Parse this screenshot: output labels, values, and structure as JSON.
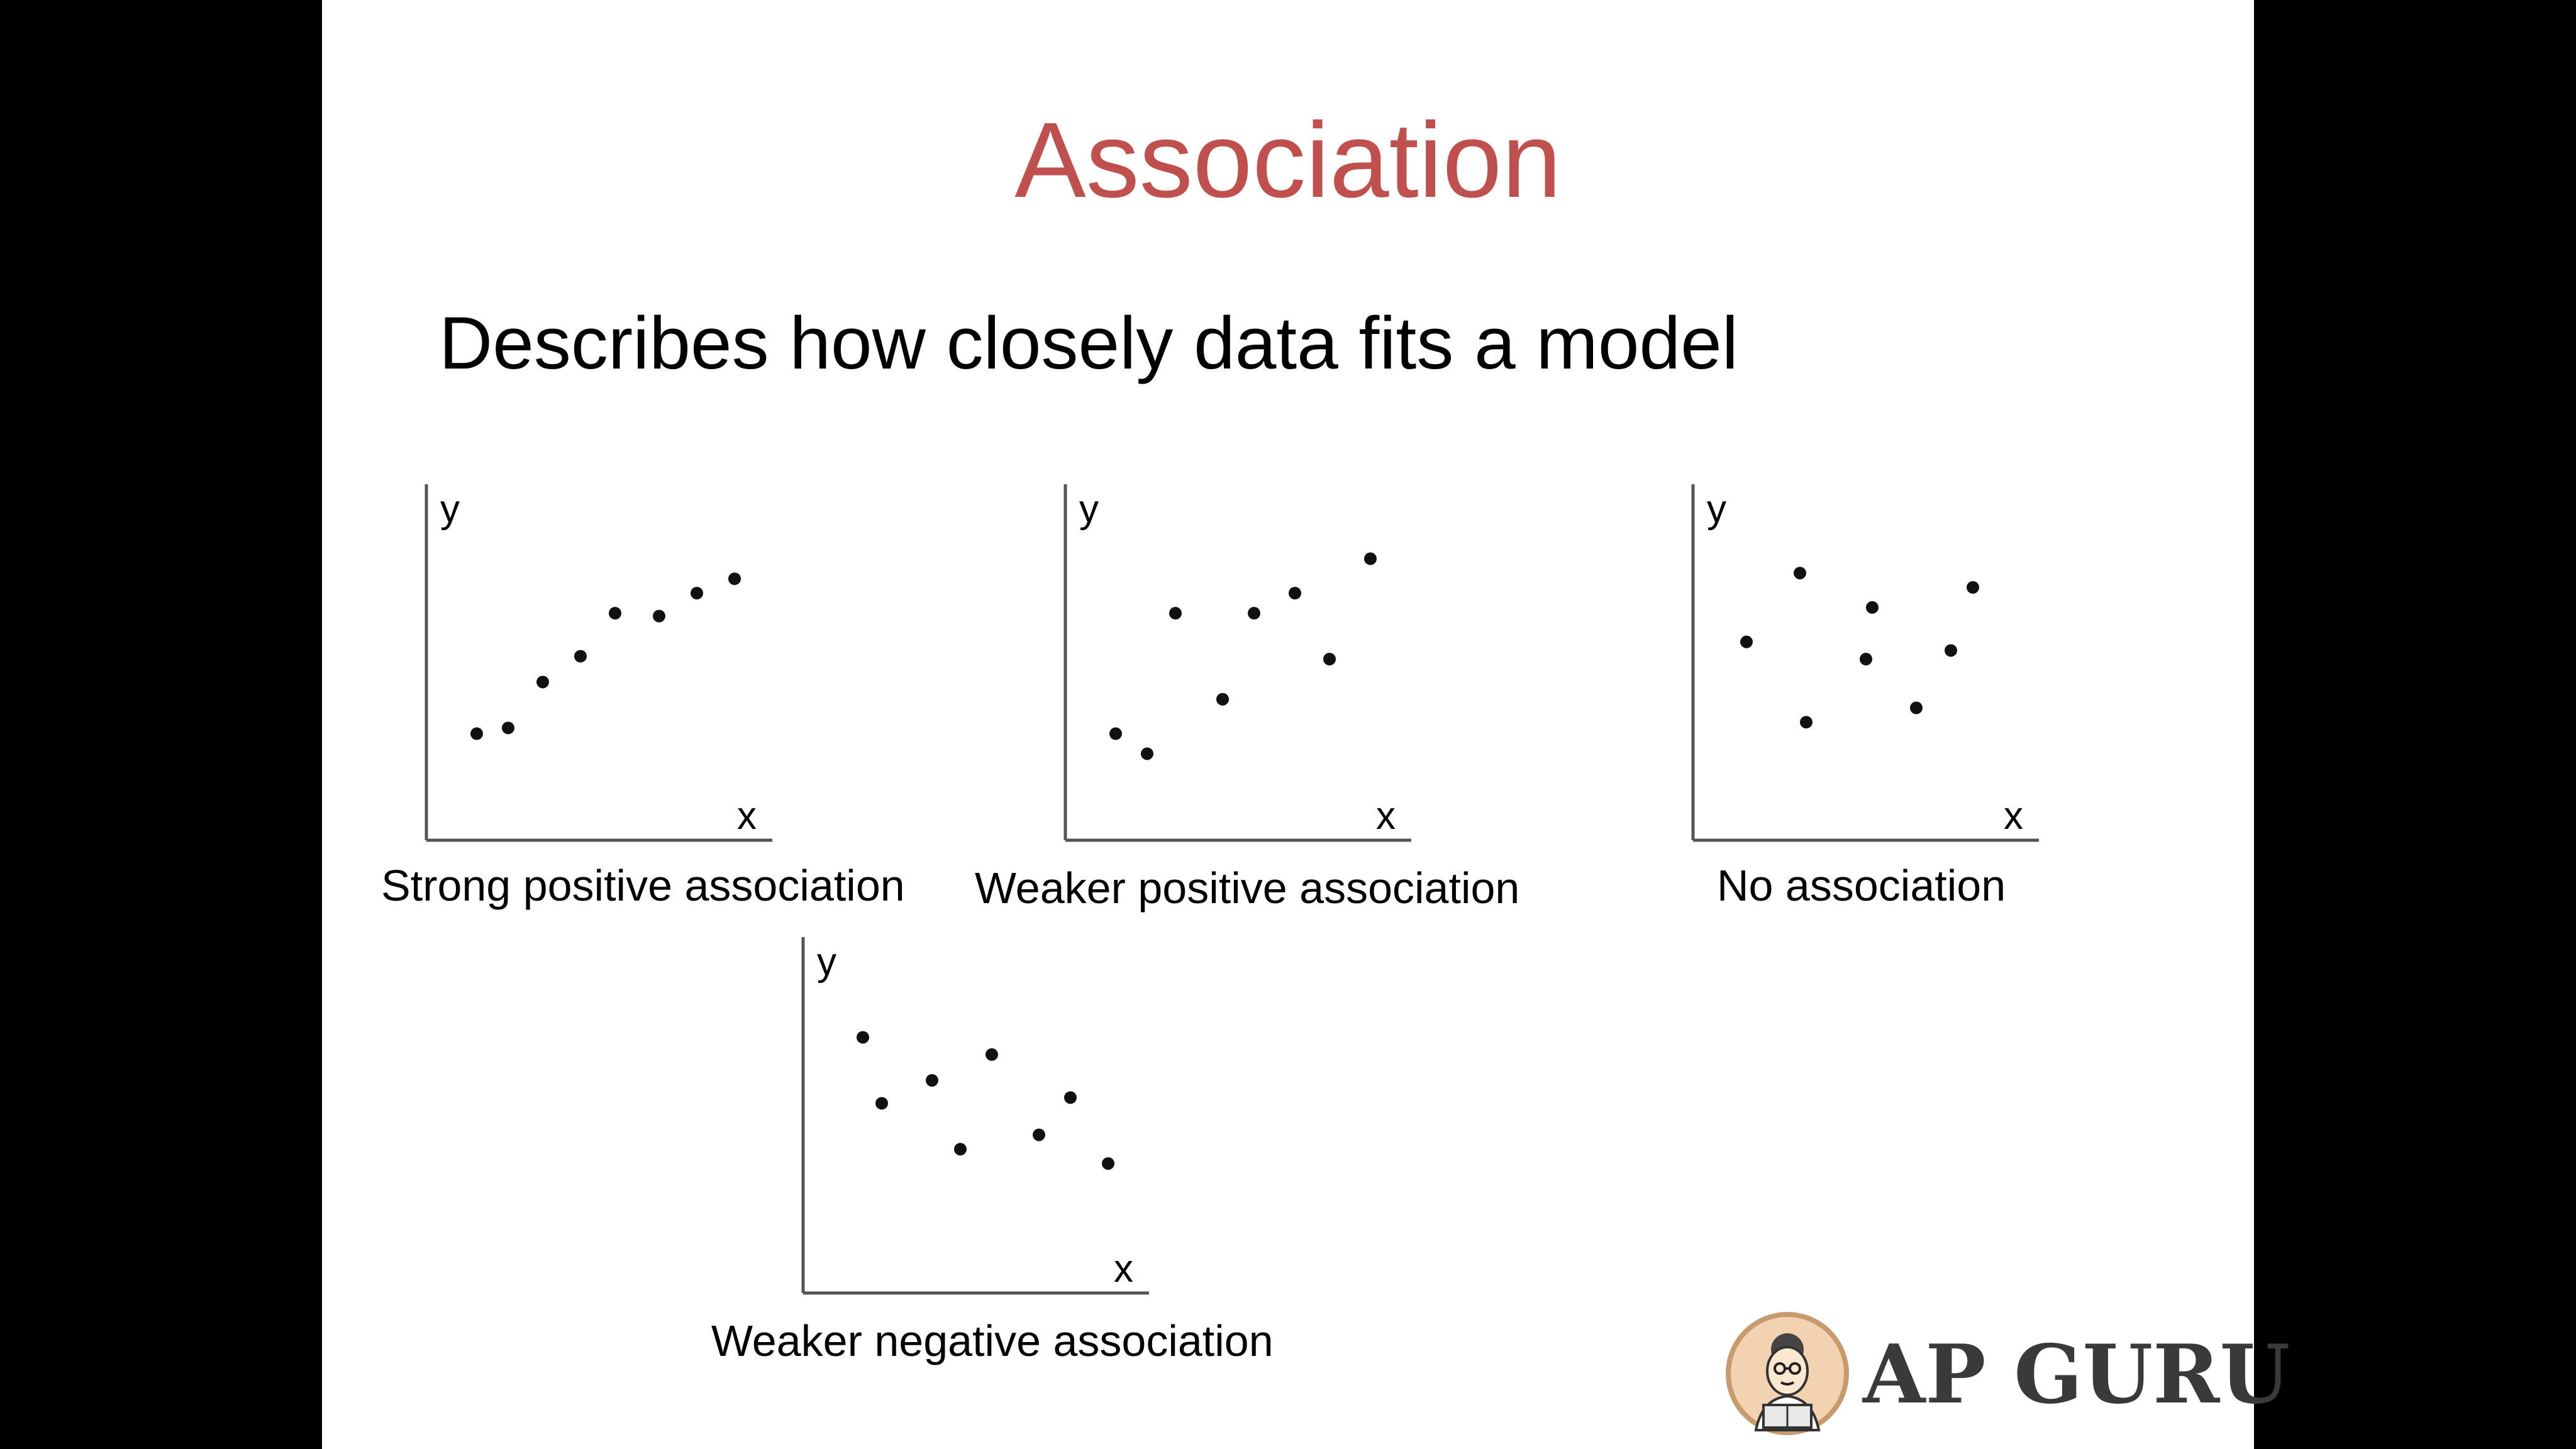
{
  "slide": {
    "title": "Association",
    "subtitle": "Describes how closely data fits a model"
  },
  "logo": {
    "text": "AP GURU"
  },
  "colors": {
    "title": "#c0504d",
    "text": "#000000",
    "axis": "#555555",
    "point": "#111111"
  },
  "chart_data": [
    {
      "type": "scatter",
      "title": "",
      "caption": "Strong positive association",
      "xlabel": "x",
      "ylabel": "y",
      "xlim": [
        0,
        10
      ],
      "ylim": [
        0,
        10
      ],
      "grid": false,
      "points": [
        [
          1.2,
          2.4
        ],
        [
          2.2,
          2.6
        ],
        [
          3.3,
          4.2
        ],
        [
          4.5,
          5.1
        ],
        [
          5.6,
          6.6
        ],
        [
          7.0,
          6.5
        ],
        [
          8.2,
          7.3
        ],
        [
          9.4,
          7.8
        ]
      ]
    },
    {
      "type": "scatter",
      "title": "",
      "caption": "Weaker positive association",
      "xlabel": "x",
      "ylabel": "y",
      "xlim": [
        0,
        10
      ],
      "ylim": [
        0,
        10
      ],
      "grid": false,
      "points": [
        [
          1.2,
          2.4
        ],
        [
          2.2,
          1.7
        ],
        [
          3.1,
          6.6
        ],
        [
          4.6,
          3.6
        ],
        [
          5.6,
          6.6
        ],
        [
          6.9,
          7.3
        ],
        [
          8.0,
          5.0
        ],
        [
          9.3,
          8.5
        ]
      ]
    },
    {
      "type": "scatter",
      "title": "",
      "caption": "No association",
      "xlabel": "x",
      "ylabel": "y",
      "xlim": [
        0,
        10
      ],
      "ylim": [
        0,
        10
      ],
      "grid": false,
      "points": [
        [
          1.3,
          5.6
        ],
        [
          3.0,
          8.0
        ],
        [
          3.2,
          2.8
        ],
        [
          5.1,
          5.0
        ],
        [
          5.3,
          6.8
        ],
        [
          6.7,
          3.3
        ],
        [
          7.8,
          5.3
        ],
        [
          8.5,
          7.5
        ]
      ]
    },
    {
      "type": "scatter",
      "title": "",
      "caption": "Weaker negative association",
      "xlabel": "x",
      "ylabel": "y",
      "xlim": [
        0,
        10
      ],
      "ylim": [
        0,
        10
      ],
      "grid": false,
      "points": [
        [
          1.5,
          7.6
        ],
        [
          2.1,
          5.3
        ],
        [
          3.7,
          6.1
        ],
        [
          4.6,
          3.7
        ],
        [
          5.6,
          7.0
        ],
        [
          7.1,
          4.2
        ],
        [
          8.1,
          5.5
        ],
        [
          9.3,
          3.2
        ]
      ]
    }
  ]
}
